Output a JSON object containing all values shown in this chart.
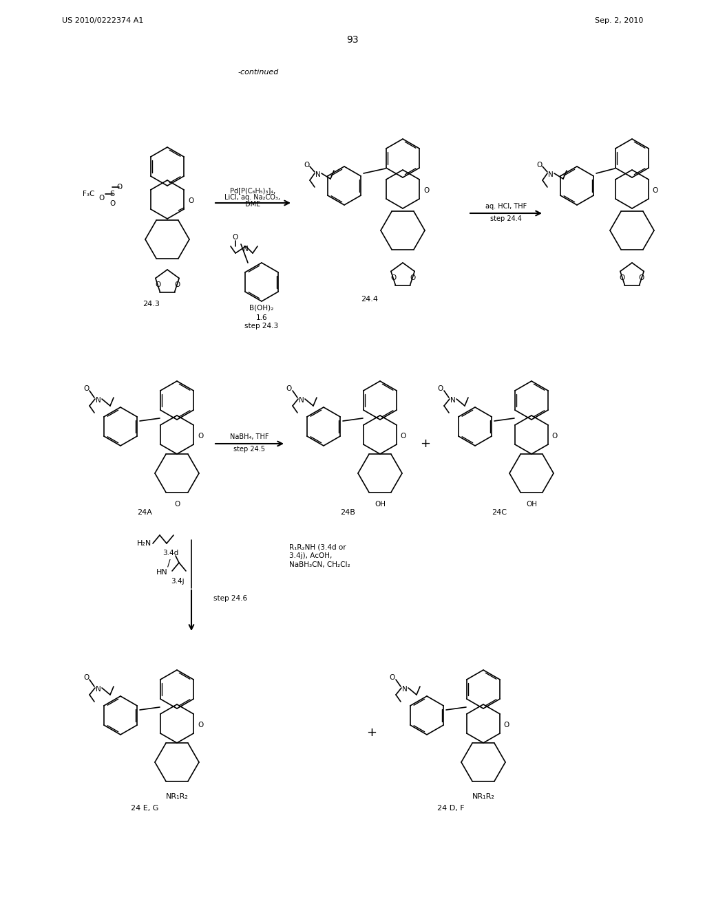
{
  "bg": "#ffffff",
  "header_left": "US 2010/0222374 A1",
  "header_right": "Sep. 2, 2010",
  "page_num": "93",
  "continued": "-continued",
  "step1_cond": [
    "Pd[P(C₆H₅)₃]₄,",
    "LiCl, aq. Na₂CO₃,",
    "DME"
  ],
  "step2_cond": [
    "aq. HCl, THF",
    "step 24.4"
  ],
  "step3_cond": [
    "NaBH₄, THF",
    "step 24.5"
  ],
  "boronic_labels": [
    "B(OH)₂",
    "1.6",
    "step 24.3"
  ],
  "labels_row1": [
    "24.3",
    "24.4"
  ],
  "labels_row2": [
    "24A",
    "24B",
    "24C"
  ],
  "labels_row3": [
    "24 E, G",
    "24 D, F"
  ],
  "step46_left": [
    "H₂N",
    "3.4d",
    "/",
    "HN",
    "3.4j",
    "step 24.6"
  ],
  "step46_right": [
    "R₁R₂NH (3.4d or",
    "3.4j), AcOH,",
    "NaBH₃CN, CH₂Cl₂"
  ],
  "nr1r2": "NR₁R₂",
  "oh": "OH"
}
